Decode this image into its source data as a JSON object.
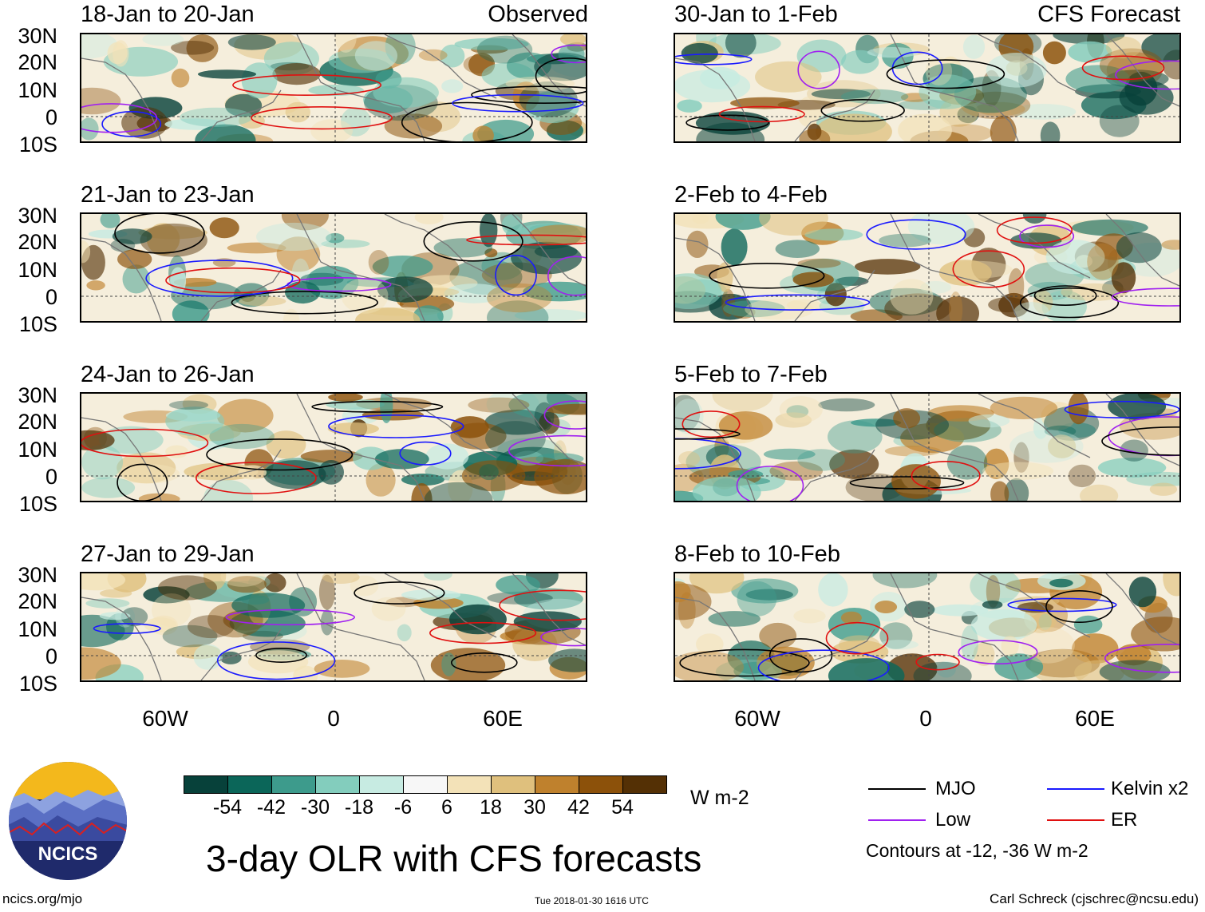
{
  "panels": [
    {
      "id": "p1",
      "title": "18-Jan to 20-Jan",
      "label": "Observed"
    },
    {
      "id": "p2",
      "title": "30-Jan to 1-Feb",
      "label": "CFS Forecast"
    },
    {
      "id": "p3",
      "title": "21-Jan to 23-Jan",
      "label": ""
    },
    {
      "id": "p4",
      "title": "2-Feb to 4-Feb",
      "label": ""
    },
    {
      "id": "p5",
      "title": "24-Jan to 26-Jan",
      "label": ""
    },
    {
      "id": "p6",
      "title": "5-Feb to 7-Feb",
      "label": ""
    },
    {
      "id": "p7",
      "title": "27-Jan to 29-Jan",
      "label": ""
    },
    {
      "id": "p8",
      "title": "8-Feb to 10-Feb",
      "label": ""
    }
  ],
  "lat_labels": [
    "30N",
    "20N",
    "10N",
    "0",
    "10S"
  ],
  "lon_labels": [
    "60W",
    "0",
    "60E"
  ],
  "colorbar": {
    "colors": [
      "#07413a",
      "#0b6659",
      "#3d9b8c",
      "#83cdbd",
      "#c7ebe2",
      "#f7f7f7",
      "#f3e2b8",
      "#dfc07d",
      "#bf812d",
      "#8c510a",
      "#543005"
    ],
    "labels": [
      "-54",
      "-42",
      "-30",
      "-18",
      "-6",
      "6",
      "18",
      "30",
      "42",
      "54"
    ],
    "units": "W m-2"
  },
  "legend": {
    "items": [
      {
        "name": "MJO",
        "color": "#000000"
      },
      {
        "name": "Kelvin x2",
        "color": "#1a1aff"
      },
      {
        "name": "Low",
        "color": "#a020f0"
      },
      {
        "name": "ER",
        "color": "#e01010"
      }
    ],
    "note": "Contours at -12, -36 W m-2"
  },
  "logo_text": "NCICS",
  "title": "3-day OLR with CFS forecasts",
  "footer": {
    "left": "ncics.org/mjo",
    "center": "Tue 2018-01-30 1616 UTC",
    "right": "Carl Schreck (cjschrec@ncsu.edu)"
  }
}
